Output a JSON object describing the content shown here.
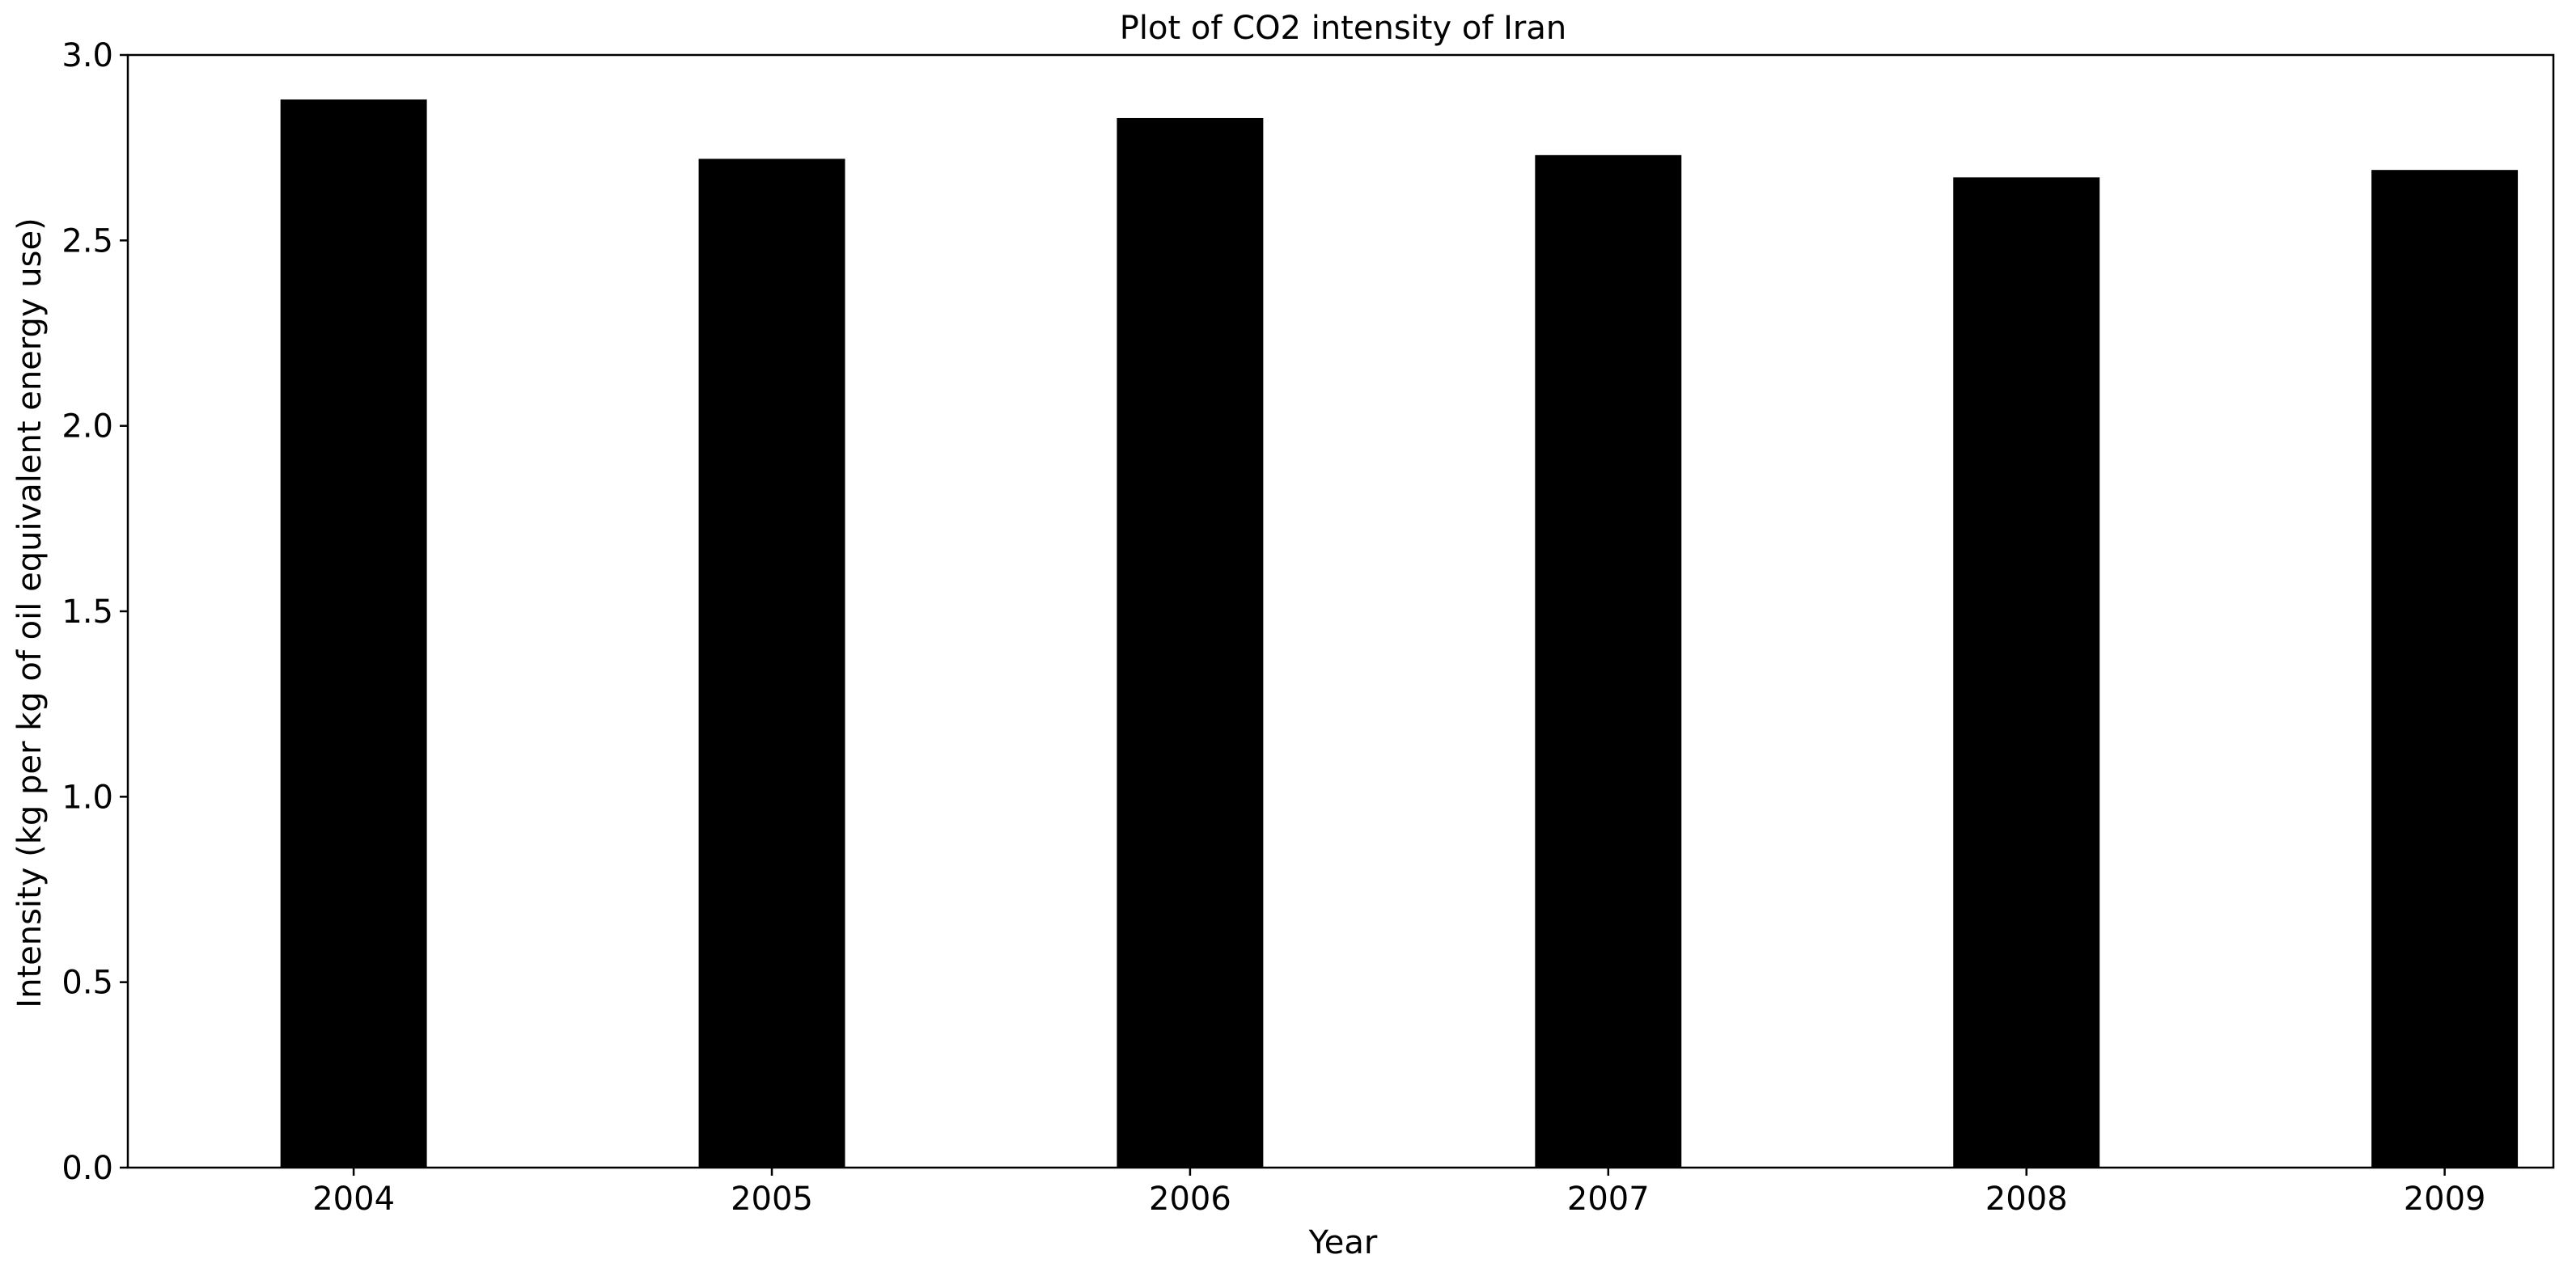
{
  "chart_data": {
    "type": "bar",
    "title": "Plot of CO2 intensity of Iran",
    "xlabel": "Year",
    "ylabel": "Intensity (kg per kg of oil equivalent energy use)",
    "categories": [
      "2004",
      "2005",
      "2006",
      "2007",
      "2008",
      "2009"
    ],
    "values": [
      2.88,
      2.72,
      2.83,
      2.73,
      2.67,
      2.69
    ],
    "ylim": [
      0,
      3.0
    ],
    "yticks": [
      0.0,
      0.5,
      1.0,
      1.5,
      2.0,
      2.5,
      3.0
    ],
    "ytick_labels": [
      "0.0",
      "0.5",
      "1.0",
      "1.5",
      "2.0",
      "2.5",
      "3.0"
    ],
    "grid": false,
    "legend": "none",
    "bar_color": "#000000"
  }
}
